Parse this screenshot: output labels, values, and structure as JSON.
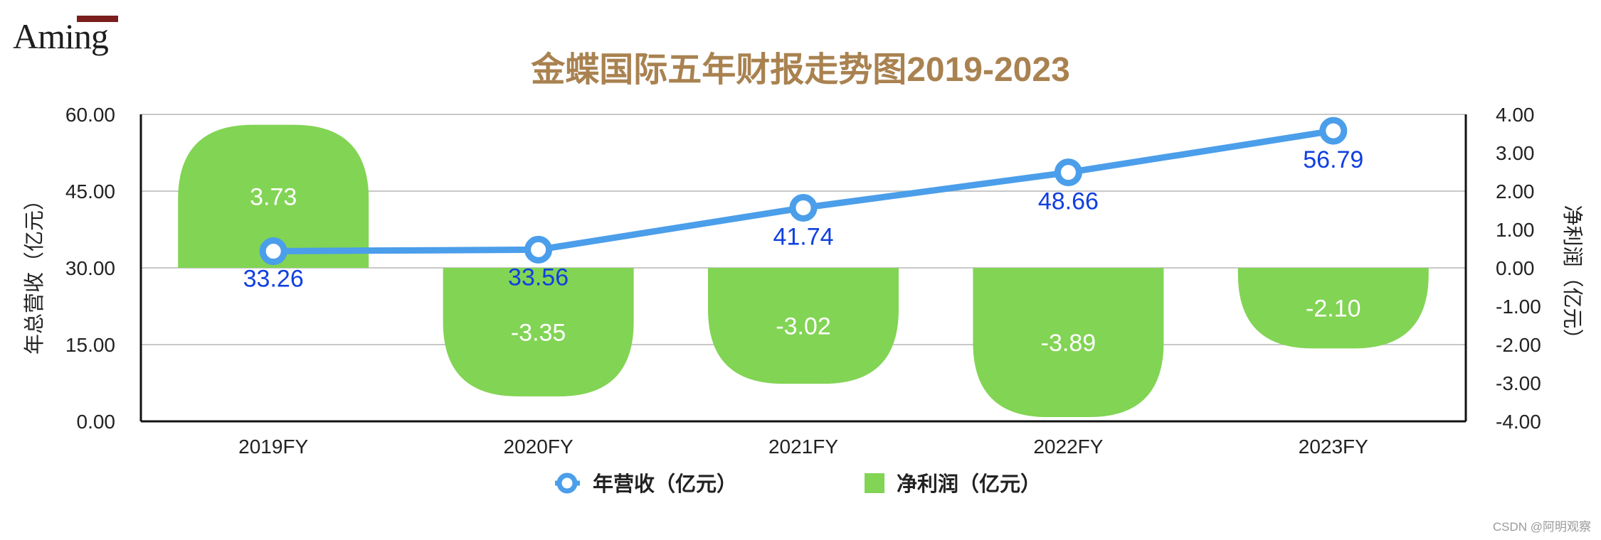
{
  "logo": {
    "text": "Aming"
  },
  "chart_data": {
    "type": "bar+line",
    "title": "金蝶国际五年财报走势图2019-2023",
    "categories": [
      "2019FY",
      "2020FY",
      "2021FY",
      "2022FY",
      "2023FY"
    ],
    "series": [
      {
        "name": "年营收（亿元）",
        "type": "line",
        "axis": "left",
        "values": [
          33.26,
          33.56,
          41.74,
          48.66,
          56.79
        ],
        "labels": [
          "33.26",
          "33.56",
          "41.74",
          "48.66",
          "56.79"
        ],
        "color": "#4b9eea"
      },
      {
        "name": "净利润（亿元）",
        "type": "bar",
        "axis": "right",
        "values": [
          3.73,
          -3.35,
          -3.02,
          -3.89,
          -2.1
        ],
        "labels": [
          "3.73",
          "-3.35",
          "-3.02",
          "-3.89",
          "-2.10"
        ],
        "color": "#82d454"
      }
    ],
    "y_left": {
      "label": "年总营收（亿元）",
      "range": [
        0,
        60
      ],
      "ticks": [
        0,
        15,
        30,
        45,
        60
      ],
      "tick_labels": [
        "0.00",
        "15.00",
        "30.00",
        "45.00",
        "60.00"
      ]
    },
    "y_right": {
      "label": "净利润（亿元）",
      "range": [
        -4,
        4
      ],
      "ticks": [
        -4,
        -3,
        -2,
        -1,
        0,
        1,
        2,
        3,
        4
      ],
      "tick_labels": [
        "-4.00",
        "-3.00",
        "-2.00",
        "-1.00",
        "0.00",
        "1.00",
        "2.00",
        "3.00",
        "4.00"
      ]
    },
    "grid": true,
    "legend": "bottom-center"
  },
  "watermark": "CSDN @阿明观察"
}
